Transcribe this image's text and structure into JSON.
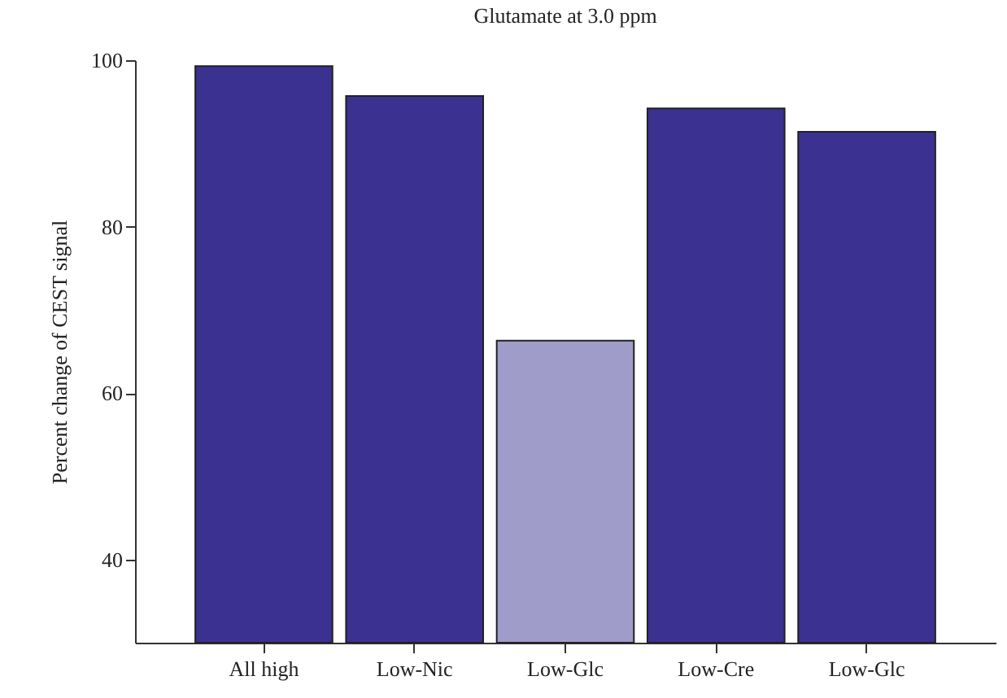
{
  "chart_data": {
    "type": "bar",
    "title": "Glutamate at 3.0 ppm",
    "ylabel": "Percent change of CEST signal",
    "categories": [
      "All high",
      "Low-Nic",
      "Low-Glc",
      "Low-Cre",
      "Low-Glc"
    ],
    "values": [
      99.3,
      95.7,
      66.3,
      94.2,
      91.4
    ],
    "colors": [
      "#3b3191",
      "#3b3191",
      "#a09cc9",
      "#3b3191",
      "#3b3191"
    ],
    "ylim": [
      30,
      100
    ],
    "yticks": [
      40,
      60,
      80,
      100
    ],
    "grid": false
  }
}
